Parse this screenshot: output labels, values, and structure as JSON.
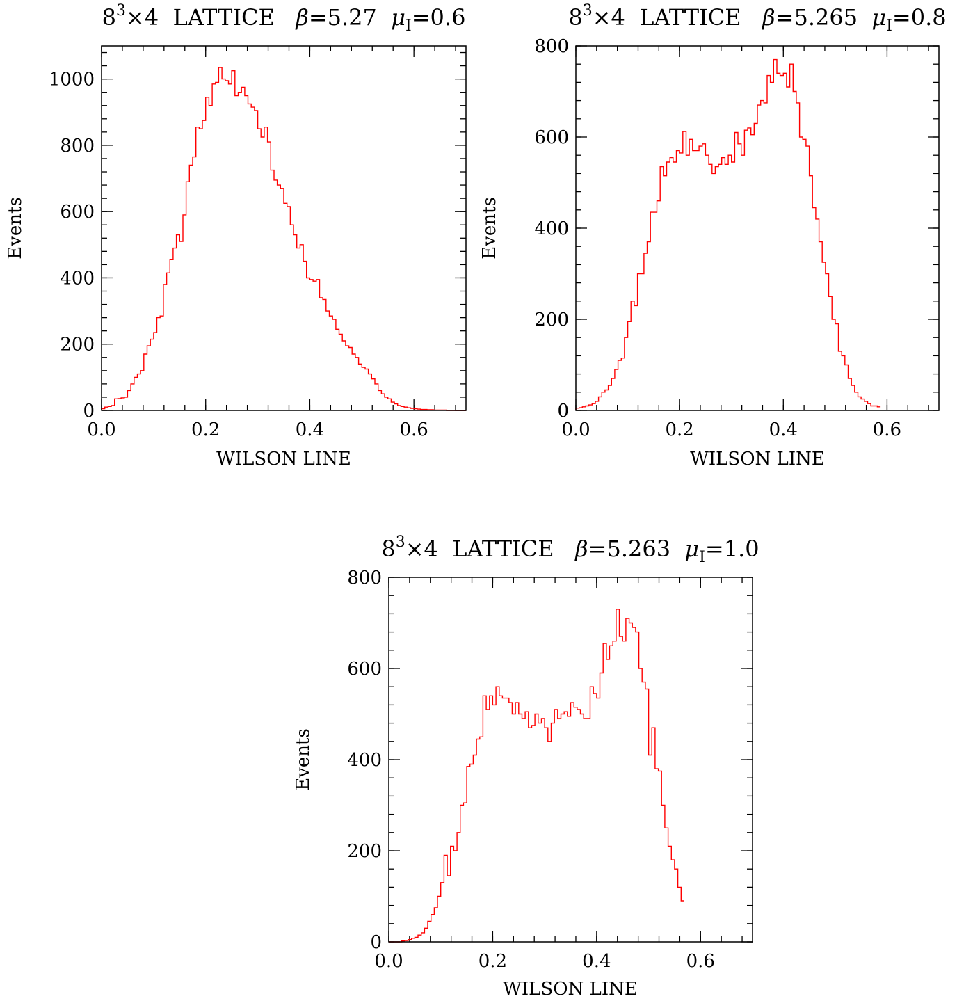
{
  "chart_data": [
    {
      "type": "bar",
      "title": "8³×4 LATTICE  β=5.27  μI=0.6",
      "title_parts": {
        "prefix": "8",
        "sup": "3",
        "middle": "×4  LATTICE   ",
        "beta": "β",
        "beta_val": "=5.27  ",
        "mu": "μ",
        "mu_sub": "I",
        "mu_val": "=0.6"
      },
      "xlabel": "WILSON LINE",
      "ylabel": "Events",
      "xlim": [
        0,
        0.7
      ],
      "ylim": [
        0,
        1100
      ],
      "xticks": [
        0.0,
        0.2,
        0.4,
        0.6
      ],
      "xtick_labels": [
        "0.0",
        "0.2",
        "0.4",
        "0.6"
      ],
      "yticks": [
        0,
        200,
        400,
        600,
        800,
        1000
      ],
      "ytick_labels": [
        "0",
        "200",
        "400",
        "600",
        "800",
        "1000"
      ],
      "x_minor_step": 0.04,
      "y_minor_step": 40,
      "grid": false,
      "line_color": "#ff0000",
      "bin_width": 0.00625,
      "values": [
        5,
        10,
        12,
        15,
        35,
        36,
        38,
        40,
        60,
        80,
        100,
        110,
        120,
        170,
        195,
        215,
        235,
        280,
        285,
        380,
        415,
        455,
        490,
        530,
        510,
        590,
        690,
        740,
        765,
        855,
        850,
        875,
        945,
        920,
        985,
        990,
        1035,
        1000,
        995,
        985,
        1025,
        950,
        960,
        975,
        950,
        925,
        915,
        905,
        850,
        825,
        855,
        810,
        725,
        695,
        680,
        670,
        625,
        615,
        560,
        530,
        490,
        500,
        450,
        400,
        395,
        390,
        395,
        340,
        335,
        300,
        285,
        275,
        245,
        230,
        210,
        195,
        190,
        170,
        160,
        140,
        130,
        125,
        110,
        95,
        80,
        60,
        50,
        40,
        35,
        25,
        20,
        15,
        12,
        10,
        8,
        6,
        5,
        4,
        3,
        3,
        2,
        2,
        1,
        1,
        1,
        1,
        0,
        0,
        0,
        0,
        0,
        0
      ]
    },
    {
      "type": "bar",
      "title": "8³×4 LATTICE  β=5.265  μI=0.8",
      "title_parts": {
        "prefix": "8",
        "sup": "3",
        "middle": "×4  LATTICE   ",
        "beta": "β",
        "beta_val": "=5.265  ",
        "mu": "μ",
        "mu_sub": "I",
        "mu_val": "=0.8"
      },
      "xlabel": "WILSON LINE",
      "ylabel": "Events",
      "xlim": [
        0,
        0.7
      ],
      "ylim": [
        0,
        800
      ],
      "xticks": [
        0.0,
        0.2,
        0.4,
        0.6
      ],
      "xtick_labels": [
        "0.0",
        "0.2",
        "0.4",
        "0.6"
      ],
      "yticks": [
        0,
        200,
        400,
        600,
        800
      ],
      "ytick_labels": [
        "0",
        "200",
        "400",
        "600",
        "800"
      ],
      "x_minor_step": 0.04,
      "y_minor_step": 40,
      "grid": false,
      "line_color": "#ff0000",
      "bin_width": 0.00625,
      "values": [
        5,
        6,
        8,
        10,
        12,
        15,
        20,
        30,
        40,
        45,
        55,
        70,
        90,
        110,
        115,
        160,
        195,
        240,
        230,
        300,
        300,
        345,
        370,
        435,
        435,
        460,
        535,
        515,
        545,
        555,
        545,
        570,
        565,
        612,
        560,
        595,
        570,
        570,
        580,
        585,
        560,
        540,
        520,
        535,
        540,
        555,
        540,
        560,
        545,
        610,
        585,
        560,
        615,
        620,
        605,
        630,
        670,
        680,
        675,
        735,
        720,
        770,
        740,
        735,
        740,
        710,
        760,
        700,
        675,
        600,
        595,
        580,
        515,
        445,
        420,
        370,
        325,
        300,
        250,
        200,
        190,
        130,
        120,
        100,
        70,
        55,
        40,
        30,
        25,
        20,
        15,
        10,
        10,
        8
      ]
    },
    {
      "type": "bar",
      "title": "8³×4 LATTICE  β=5.263  μI=1.0",
      "title_parts": {
        "prefix": "8",
        "sup": "3",
        "middle": "×4  LATTICE   ",
        "beta": "β",
        "beta_val": "=5.263  ",
        "mu": "μ",
        "mu_sub": "I",
        "mu_val": "=1.0"
      },
      "xlabel": "WILSON LINE",
      "ylabel": "Events",
      "xlim": [
        0,
        0.7
      ],
      "ylim": [
        0,
        800
      ],
      "xticks": [
        0.0,
        0.2,
        0.4,
        0.6
      ],
      "xtick_labels": [
        "0.0",
        "0.2",
        "0.4",
        "0.6"
      ],
      "yticks": [
        0,
        200,
        400,
        600,
        800
      ],
      "ytick_labels": [
        "0",
        "200",
        "400",
        "600",
        "800"
      ],
      "x_minor_step": 0.04,
      "y_minor_step": 40,
      "grid": false,
      "line_color": "#ff0000",
      "bin_width": 0.00625,
      "values": [
        0,
        0,
        0,
        0,
        2,
        3,
        5,
        8,
        10,
        15,
        20,
        30,
        45,
        60,
        75,
        100,
        130,
        190,
        145,
        210,
        200,
        240,
        300,
        305,
        385,
        390,
        410,
        445,
        450,
        540,
        510,
        540,
        520,
        560,
        540,
        535,
        535,
        525,
        500,
        525,
        500,
        490,
        505,
        470,
        475,
        500,
        480,
        490,
        470,
        440,
        480,
        510,
        490,
        500,
        505,
        495,
        525,
        515,
        510,
        500,
        490,
        490,
        560,
        545,
        535,
        590,
        655,
        620,
        650,
        660,
        730,
        670,
        660,
        710,
        700,
        690,
        680,
        600,
        570,
        555,
        410,
        470,
        380,
        375,
        300,
        250,
        210,
        180,
        160,
        120,
        90
      ]
    }
  ]
}
